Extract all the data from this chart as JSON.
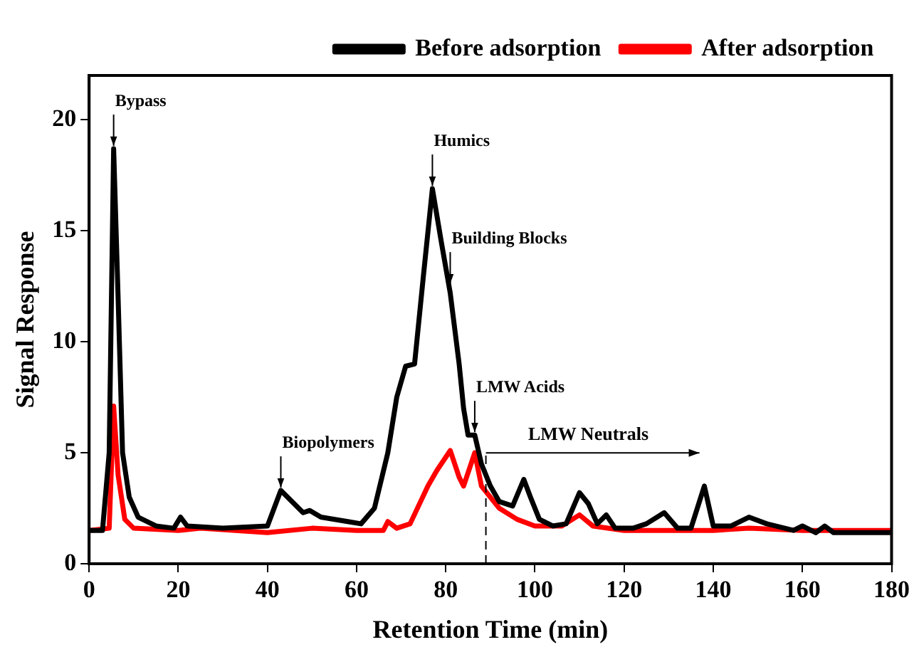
{
  "chart_data": {
    "type": "line",
    "xlabel": "Retention Time (min)",
    "ylabel": "Signal Response",
    "xlim": [
      0,
      180
    ],
    "xticks": [
      0,
      20,
      40,
      60,
      80,
      100,
      120,
      140,
      160,
      180
    ],
    "ylim": [
      0,
      22
    ],
    "yticks": [
      0,
      5,
      10,
      15,
      20
    ],
    "grid": false,
    "legend": "top right",
    "marker": "none",
    "line_style": "solid",
    "series": [
      {
        "name": "Before adsorption",
        "color": "#000000",
        "x": [
          0,
          3,
          4.5,
          5.5,
          6.5,
          7.5,
          9,
          11,
          15,
          19,
          20.5,
          22,
          30,
          40,
          41.5,
          43,
          45,
          48,
          49.5,
          52,
          58,
          61,
          64,
          67,
          69,
          71,
          73,
          75,
          77,
          79,
          81,
          83,
          84,
          85,
          86.5,
          88,
          90,
          92,
          95,
          97.5,
          99,
          101,
          104,
          107,
          110,
          112,
          114,
          116,
          118,
          122,
          125,
          129,
          132,
          135,
          138,
          140,
          144,
          148,
          152,
          158,
          160,
          163,
          165,
          167,
          180
        ],
        "values": [
          1.5,
          1.5,
          5,
          18.7,
          12,
          5,
          3,
          2.1,
          1.7,
          1.6,
          2.1,
          1.7,
          1.6,
          1.7,
          2.5,
          3.3,
          2.9,
          2.3,
          2.4,
          2.1,
          1.9,
          1.8,
          2.5,
          5,
          7.5,
          8.9,
          9,
          13,
          16.9,
          14.5,
          12.2,
          9,
          7,
          5.8,
          5.8,
          4.5,
          3.5,
          2.8,
          2.6,
          3.8,
          3,
          2,
          1.7,
          1.8,
          3.2,
          2.7,
          1.8,
          2.2,
          1.6,
          1.6,
          1.8,
          2.3,
          1.6,
          1.6,
          3.5,
          1.7,
          1.7,
          2.1,
          1.8,
          1.5,
          1.7,
          1.4,
          1.7,
          1.4,
          1.4
        ]
      },
      {
        "name": "After adsorption",
        "color": "#ff0000",
        "x": [
          0,
          4.5,
          5.5,
          6.5,
          8,
          10,
          20,
          25,
          40,
          50,
          60,
          66,
          67,
          69,
          72,
          76,
          78,
          81,
          83,
          84,
          86.5,
          88,
          92,
          96,
          100,
          106,
          110,
          113,
          120,
          140,
          148,
          160,
          180
        ],
        "values": [
          1.5,
          1.6,
          7.1,
          4,
          2,
          1.6,
          1.5,
          1.6,
          1.4,
          1.6,
          1.5,
          1.5,
          1.9,
          1.6,
          1.8,
          3.5,
          4.2,
          5.1,
          3.9,
          3.5,
          5,
          3.5,
          2.5,
          2,
          1.7,
          1.7,
          2.2,
          1.7,
          1.5,
          1.5,
          1.6,
          1.5,
          1.5
        ]
      }
    ],
    "annotations": [
      {
        "text": "Bypass",
        "x": 5.5,
        "y": 18.7
      },
      {
        "text": "Humics",
        "x": 77,
        "y": 16.9
      },
      {
        "text": "Building Blocks",
        "x": 81,
        "y": 12.5
      },
      {
        "text": "LMW Acids",
        "x": 86.5,
        "y": 5.8
      },
      {
        "text": "Biopolymers",
        "x": 43,
        "y": 3.3
      }
    ],
    "ref_lines": [
      {
        "axis": "x",
        "value": 89,
        "label": "LMW Neutrals",
        "line_style": "dashed",
        "color": "#000000"
      }
    ]
  }
}
